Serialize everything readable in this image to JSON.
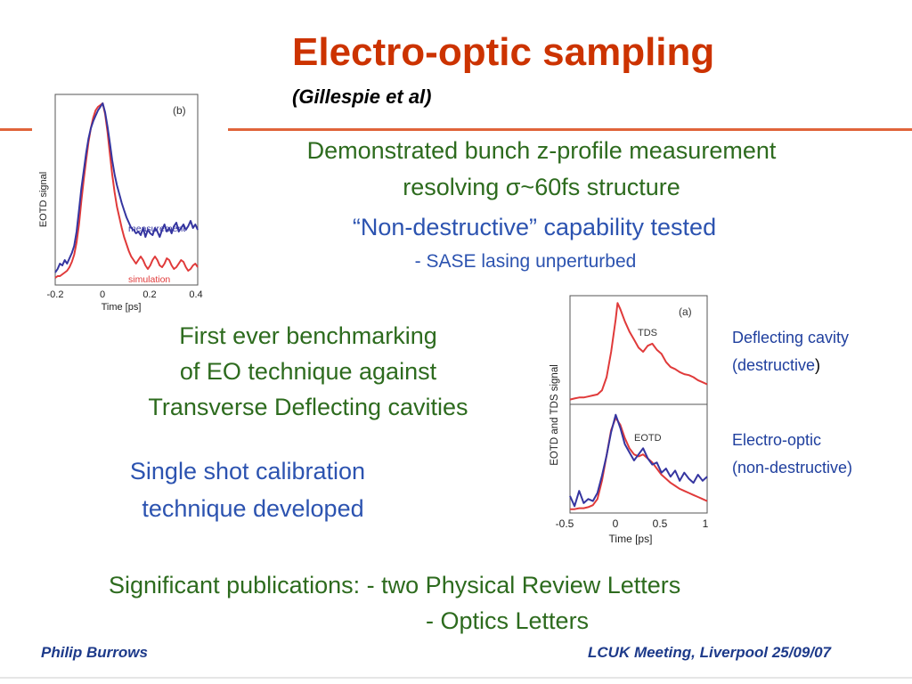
{
  "title": "Electro-optic sampling",
  "subtitle": "(Gillespie et al)",
  "bullets": {
    "demo_line1": "Demonstrated bunch z-profile measurement",
    "demo_line2": "resolving σ~60fs structure",
    "nondestructive": "“Non-destructive” capability tested",
    "sase": "- SASE lasing unperturbed",
    "benchmark_line1": "First ever benchmarking",
    "benchmark_line2": "of EO technique against",
    "benchmark_line3": "Transverse Deflecting cavities",
    "single_shot_line1": "Single shot calibration",
    "single_shot_line2": "technique developed",
    "publications_line1": "Significant publications: - two Physical Review Letters",
    "publications_line2": "- Optics Letters"
  },
  "side_notes": {
    "deflecting_line1": "Deflecting cavity",
    "deflecting_line2": "(destructive",
    "deflecting_paren": ")",
    "eo_line1": "Electro-optic",
    "eo_line2": "(non-destructive)"
  },
  "footer": {
    "left": "Philip Burrows",
    "right": "LCUK Meeting, Liverpool 25/09/07"
  },
  "colors": {
    "title": "#cc3300",
    "rule": "#e0643a",
    "green_text": "#2d6b1e",
    "blue_text": "#2c53b0",
    "measurement": "#3535a0",
    "simulation": "#e03a3a"
  },
  "chart_data": [
    {
      "type": "line",
      "panel_label": "(b)",
      "xlabel": "Time [ps]",
      "ylabel": "EOTD signal",
      "xlim": [
        -0.2,
        0.4
      ],
      "xticks": [
        "-0.2",
        "0",
        "0.2",
        "0.4"
      ],
      "series": [
        {
          "name": "measurement",
          "color": "#3535a0",
          "x": [
            -0.2,
            -0.19,
            -0.18,
            -0.17,
            -0.16,
            -0.15,
            -0.14,
            -0.13,
            -0.12,
            -0.11,
            -0.1,
            -0.09,
            -0.08,
            -0.07,
            -0.06,
            -0.05,
            -0.04,
            -0.03,
            -0.02,
            -0.01,
            0,
            0.01,
            0.02,
            0.03,
            0.04,
            0.05,
            0.06,
            0.07,
            0.08,
            0.09,
            0.1,
            0.11,
            0.12,
            0.13,
            0.14,
            0.15,
            0.16,
            0.17,
            0.18,
            0.19,
            0.2,
            0.21,
            0.22,
            0.23,
            0.24,
            0.25,
            0.26,
            0.27,
            0.28,
            0.29,
            0.3,
            0.31,
            0.32,
            0.33,
            0.34,
            0.35,
            0.36,
            0.37,
            0.38,
            0.39,
            0.4
          ],
          "y": [
            0.05,
            0.07,
            0.1,
            0.09,
            0.12,
            0.1,
            0.13,
            0.16,
            0.2,
            0.28,
            0.4,
            0.52,
            0.62,
            0.72,
            0.8,
            0.86,
            0.9,
            0.93,
            0.96,
            0.98,
            1.0,
            0.95,
            0.87,
            0.78,
            0.68,
            0.6,
            0.54,
            0.49,
            0.44,
            0.4,
            0.36,
            0.33,
            0.3,
            0.29,
            0.27,
            0.28,
            0.26,
            0.3,
            0.25,
            0.29,
            0.27,
            0.26,
            0.3,
            0.28,
            0.25,
            0.29,
            0.32,
            0.28,
            0.3,
            0.27,
            0.31,
            0.33,
            0.28,
            0.3,
            0.32,
            0.29,
            0.31,
            0.34,
            0.3,
            0.32,
            0.29
          ]
        },
        {
          "name": "simulation",
          "color": "#e03a3a",
          "x": [
            -0.2,
            -0.19,
            -0.18,
            -0.17,
            -0.16,
            -0.15,
            -0.14,
            -0.13,
            -0.12,
            -0.11,
            -0.1,
            -0.09,
            -0.08,
            -0.07,
            -0.06,
            -0.05,
            -0.04,
            -0.03,
            -0.02,
            -0.01,
            0,
            0.01,
            0.02,
            0.03,
            0.04,
            0.05,
            0.06,
            0.07,
            0.08,
            0.09,
            0.1,
            0.11,
            0.12,
            0.13,
            0.14,
            0.15,
            0.16,
            0.17,
            0.18,
            0.19,
            0.2,
            0.21,
            0.22,
            0.23,
            0.24,
            0.25,
            0.26,
            0.27,
            0.28,
            0.29,
            0.3,
            0.31,
            0.32,
            0.33,
            0.34,
            0.35,
            0.36,
            0.37,
            0.38,
            0.39,
            0.4
          ],
          "y": [
            0.02,
            0.03,
            0.03,
            0.04,
            0.05,
            0.06,
            0.08,
            0.11,
            0.15,
            0.22,
            0.32,
            0.45,
            0.57,
            0.68,
            0.78,
            0.86,
            0.92,
            0.96,
            0.98,
            0.99,
            1.0,
            0.94,
            0.84,
            0.72,
            0.6,
            0.5,
            0.42,
            0.36,
            0.3,
            0.25,
            0.21,
            0.17,
            0.14,
            0.12,
            0.1,
            0.12,
            0.14,
            0.12,
            0.09,
            0.07,
            0.09,
            0.12,
            0.14,
            0.12,
            0.09,
            0.08,
            0.1,
            0.13,
            0.12,
            0.09,
            0.07,
            0.08,
            0.1,
            0.12,
            0.11,
            0.08,
            0.06,
            0.07,
            0.09,
            0.1,
            0.08
          ]
        }
      ]
    },
    {
      "type": "line",
      "panel_label": "(a)",
      "xlabel": "Time [ps]",
      "ylabel": "EOTD and TDS signal",
      "xlim": [
        -0.5,
        1
      ],
      "xticks": [
        "-0.5",
        "0",
        "0.5",
        "1"
      ],
      "panels": [
        {
          "label": "TDS",
          "series": [
            {
              "color": "#e03a3a",
              "x": [
                -0.5,
                -0.45,
                -0.4,
                -0.35,
                -0.3,
                -0.25,
                -0.2,
                -0.15,
                -0.1,
                -0.05,
                0,
                0.02,
                0.05,
                0.1,
                0.15,
                0.2,
                0.25,
                0.3,
                0.35,
                0.4,
                0.45,
                0.5,
                0.55,
                0.6,
                0.65,
                0.7,
                0.75,
                0.8,
                0.85,
                0.9,
                0.95,
                1.0
              ],
              "y": [
                0.03,
                0.04,
                0.05,
                0.05,
                0.06,
                0.07,
                0.08,
                0.12,
                0.25,
                0.5,
                0.82,
                0.98,
                0.92,
                0.8,
                0.7,
                0.62,
                0.54,
                0.5,
                0.56,
                0.58,
                0.52,
                0.48,
                0.4,
                0.35,
                0.33,
                0.3,
                0.28,
                0.27,
                0.25,
                0.22,
                0.2,
                0.18
              ]
            }
          ]
        },
        {
          "label": "EOTD",
          "series": [
            {
              "color": "#e03a3a",
              "x": [
                -0.5,
                -0.45,
                -0.4,
                -0.35,
                -0.3,
                -0.25,
                -0.2,
                -0.15,
                -0.1,
                -0.05,
                0,
                0.05,
                0.1,
                0.15,
                0.2,
                0.25,
                0.3,
                0.35,
                0.4,
                0.45,
                0.5,
                0.55,
                0.6,
                0.65,
                0.7,
                0.75,
                0.8,
                0.85,
                0.9,
                0.95,
                1.0
              ],
              "y": [
                0.02,
                0.02,
                0.03,
                0.03,
                0.04,
                0.06,
                0.12,
                0.3,
                0.55,
                0.8,
                0.92,
                0.85,
                0.72,
                0.62,
                0.56,
                0.54,
                0.56,
                0.52,
                0.48,
                0.42,
                0.36,
                0.32,
                0.28,
                0.25,
                0.22,
                0.2,
                0.18,
                0.16,
                0.14,
                0.12,
                0.1
              ]
            },
            {
              "color": "#3535a0",
              "x": [
                -0.5,
                -0.45,
                -0.4,
                -0.35,
                -0.3,
                -0.25,
                -0.2,
                -0.15,
                -0.1,
                -0.05,
                0,
                0.05,
                0.1,
                0.15,
                0.2,
                0.25,
                0.3,
                0.35,
                0.4,
                0.45,
                0.5,
                0.55,
                0.6,
                0.65,
                0.7,
                0.75,
                0.8,
                0.85,
                0.9,
                0.95,
                1.0
              ],
              "y": [
                0.15,
                0.05,
                0.2,
                0.08,
                0.12,
                0.1,
                0.18,
                0.35,
                0.55,
                0.78,
                0.95,
                0.82,
                0.66,
                0.58,
                0.5,
                0.56,
                0.62,
                0.52,
                0.46,
                0.48,
                0.38,
                0.42,
                0.34,
                0.4,
                0.3,
                0.38,
                0.32,
                0.28,
                0.36,
                0.3,
                0.34
              ]
            }
          ]
        }
      ]
    }
  ]
}
